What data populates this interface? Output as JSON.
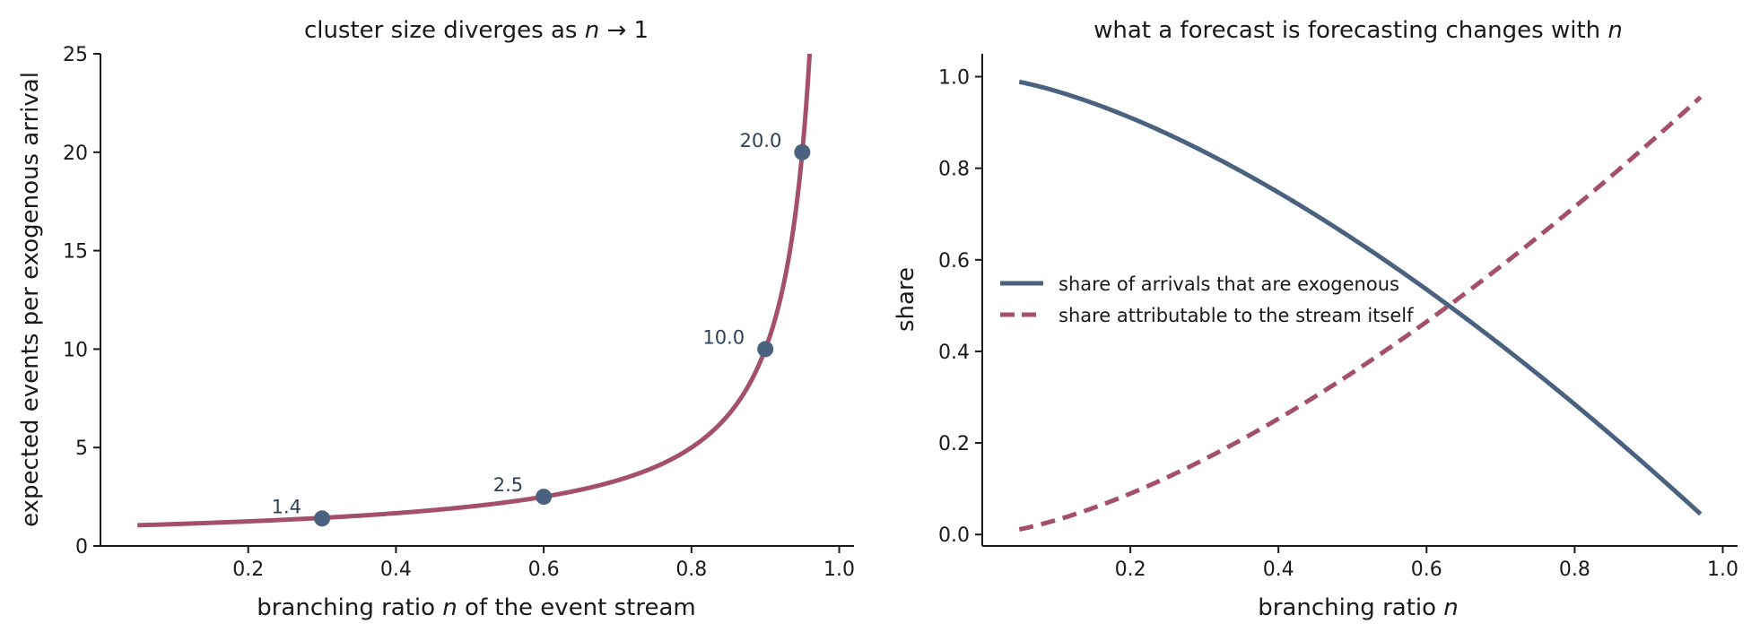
{
  "colors": {
    "series_a": "#4a6180",
    "series_b": "#a4506b",
    "annotation": "#2e4159"
  },
  "chart_data": [
    {
      "type": "line",
      "title_prefix": "cluster size diverges as ",
      "title_var": "n",
      "title_suffix": " → 1",
      "xlabel_prefix": "branching ratio ",
      "xlabel_var": "n",
      "xlabel_suffix": " of the event stream",
      "ylabel": "expected events per exogenous arrival",
      "xlim": [
        0.0,
        1.02
      ],
      "ylim": [
        0,
        25
      ],
      "xticks": [
        0.2,
        0.4,
        0.6,
        0.8,
        1.0
      ],
      "xtick_labels": [
        "0.2",
        "0.4",
        "0.6",
        "0.8",
        "1.0"
      ],
      "yticks": [
        0,
        5,
        10,
        15,
        20,
        25
      ],
      "ytick_labels": [
        "0",
        "5",
        "10",
        "15",
        "20",
        "25"
      ],
      "grid": false,
      "series": [
        {
          "formula": "1/(1-n)",
          "x_range": [
            0.05,
            0.96
          ],
          "style": "solid",
          "color": "#a4506b"
        }
      ],
      "markers": [
        {
          "x": 0.3,
          "y": 1.4,
          "label": "1.4"
        },
        {
          "x": 0.6,
          "y": 2.5,
          "label": "2.5"
        },
        {
          "x": 0.9,
          "y": 10.0,
          "label": "10.0"
        },
        {
          "x": 0.95,
          "y": 20.0,
          "label": "20.0"
        }
      ]
    },
    {
      "type": "line",
      "title_prefix": "what a forecast is forecasting changes with ",
      "title_var": "n",
      "title_suffix": "",
      "xlabel_prefix": "branching ratio ",
      "xlabel_var": "n",
      "xlabel_suffix": "",
      "ylabel": "share",
      "xlim": [
        0.0,
        1.02
      ],
      "ylim": [
        -0.025,
        1.05
      ],
      "xticks": [
        0.2,
        0.4,
        0.6,
        0.8,
        1.0
      ],
      "xtick_labels": [
        "0.2",
        "0.4",
        "0.6",
        "0.8",
        "1.0"
      ],
      "yticks": [
        0.0,
        0.2,
        0.4,
        0.6,
        0.8,
        1.0
      ],
      "ytick_labels": [
        "0.0",
        "0.2",
        "0.4",
        "0.6",
        "0.8",
        "1.0"
      ],
      "grid": false,
      "legend_position": "center-left",
      "series": [
        {
          "name": "share of arrivals that are exogenous",
          "formula": "1-n^1.5",
          "x_range": [
            0.05,
            0.97
          ],
          "style": "solid",
          "color": "#4a6180"
        },
        {
          "name": "share attributable to the stream itself",
          "formula": "n^1.5",
          "x_range": [
            0.05,
            0.97
          ],
          "style": "dashed",
          "color": "#a4506b"
        }
      ]
    }
  ]
}
